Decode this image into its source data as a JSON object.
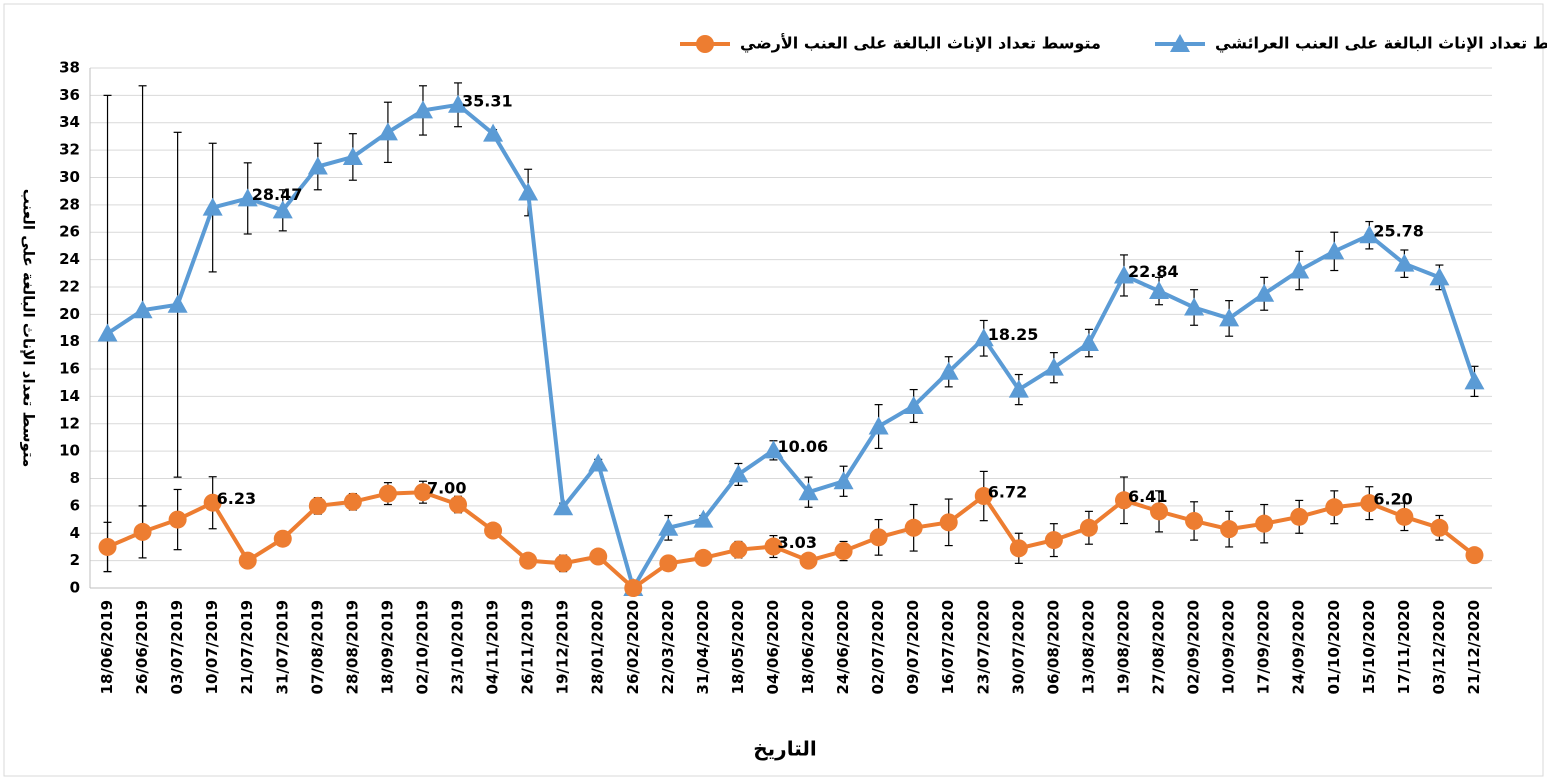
{
  "chart_data": {
    "type": "line",
    "y_label": "متوسط تعداد الإناث البالغة على العنب",
    "x_label": "التاريخ",
    "categories": [
      "18/06/2019",
      "26/06/2019",
      "03/07/2019",
      "10/07/2019",
      "21/07/2019",
      "31/07/2019",
      "07/08/2019",
      "28/08/2019",
      "18/09/2019",
      "02/10/2019",
      "23/10/2019",
      "04/11/2019",
      "26/11/2019",
      "19/12/2019",
      "28/01/2020",
      "26/02/2020",
      "22/03/2020",
      "31/04/2020",
      "18/05/2020",
      "04/06/2020",
      "18/06/2020",
      "24/06/2020",
      "02/07/2020",
      "09/07/2020",
      "16/07/2020",
      "23/07/2020",
      "30/07/2020",
      "06/08/2020",
      "13/08/2020",
      "19/08/2020",
      "27/08/2020",
      "02/09/2020",
      "10/09/2020",
      "17/09/2020",
      "24/09/2020",
      "01/10/2020",
      "15/10/2020",
      "17/11/2020",
      "03/12/2020",
      "21/12/2020"
    ],
    "series": [
      {
        "name": "متوسط تعداد الإناث البالغة على العنب العرائشي",
        "color": "#5b9bd5",
        "marker": "triangle",
        "values": [
          18.6,
          20.3,
          20.7,
          27.8,
          28.47,
          27.6,
          30.8,
          31.5,
          33.3,
          34.9,
          35.31,
          33.2,
          28.9,
          5.9,
          9.1,
          0,
          4.4,
          5.0,
          8.3,
          10.06,
          7.0,
          7.8,
          11.8,
          13.3,
          15.8,
          18.25,
          14.5,
          16.1,
          17.9,
          22.84,
          21.7,
          20.5,
          19.7,
          21.5,
          23.2,
          24.6,
          25.78,
          23.7,
          22.7,
          15.1
        ],
        "errors": [
          17.4,
          16.4,
          12.6,
          4.7,
          2.6,
          1.5,
          1.7,
          1.7,
          2.2,
          1.8,
          1.6,
          0.3,
          1.7,
          0.3,
          0.3,
          0,
          0.9,
          0.3,
          0.8,
          0.7,
          1.1,
          1.1,
          1.6,
          1.2,
          1.1,
          1.3,
          1.1,
          1.1,
          1.0,
          1.5,
          1.0,
          1.3,
          1.3,
          1.2,
          1.4,
          1.4,
          1.0,
          1.0,
          0.9,
          1.1
        ],
        "value_labels": [
          null,
          null,
          null,
          null,
          "28.47",
          null,
          null,
          null,
          null,
          null,
          "35.31",
          null,
          null,
          null,
          null,
          null,
          null,
          null,
          null,
          "10.06",
          null,
          null,
          null,
          null,
          null,
          "18.25",
          null,
          null,
          null,
          "22.84",
          null,
          null,
          null,
          null,
          null,
          null,
          "25.78",
          null,
          null,
          null
        ]
      },
      {
        "name": "متوسط تعداد الإناث البالغة على العنب الأرضي",
        "color": "#ed7d31",
        "marker": "circle",
        "values": [
          3.0,
          4.1,
          5.0,
          6.23,
          2.0,
          3.6,
          6.0,
          6.3,
          6.9,
          7.0,
          6.1,
          4.2,
          2.0,
          1.8,
          2.3,
          0,
          1.8,
          2.2,
          2.8,
          3.03,
          2.0,
          2.7,
          3.7,
          4.4,
          4.8,
          6.72,
          2.9,
          3.5,
          4.4,
          6.41,
          5.6,
          4.9,
          4.3,
          4.7,
          5.2,
          5.9,
          6.2,
          5.2,
          4.4,
          2.4
        ],
        "errors": [
          1.8,
          1.9,
          2.2,
          1.9,
          0.2,
          0.2,
          0.6,
          0.6,
          0.8,
          0.8,
          0.6,
          0.3,
          0.3,
          0.6,
          0.3,
          0,
          0.4,
          0.3,
          0.6,
          0.8,
          0.4,
          0.7,
          1.3,
          1.7,
          1.7,
          1.8,
          1.1,
          1.2,
          1.2,
          1.7,
          1.5,
          1.4,
          1.3,
          1.4,
          1.2,
          1.2,
          1.2,
          1.0,
          0.9,
          0.2
        ],
        "value_labels": [
          null,
          null,
          null,
          "6.23",
          null,
          null,
          null,
          null,
          null,
          "7.00",
          null,
          null,
          null,
          null,
          null,
          null,
          null,
          null,
          null,
          "3.03",
          null,
          null,
          null,
          null,
          null,
          "6.72",
          null,
          null,
          null,
          "6.41",
          null,
          null,
          null,
          null,
          null,
          null,
          "6.20",
          null,
          null,
          null
        ]
      }
    ],
    "ylim": [
      0,
      38
    ],
    "yticks": [
      0,
      2,
      4,
      6,
      8,
      10,
      12,
      14,
      16,
      18,
      20,
      22,
      24,
      26,
      28,
      30,
      32,
      34,
      36,
      38
    ],
    "grid": true,
    "legend": "top"
  }
}
